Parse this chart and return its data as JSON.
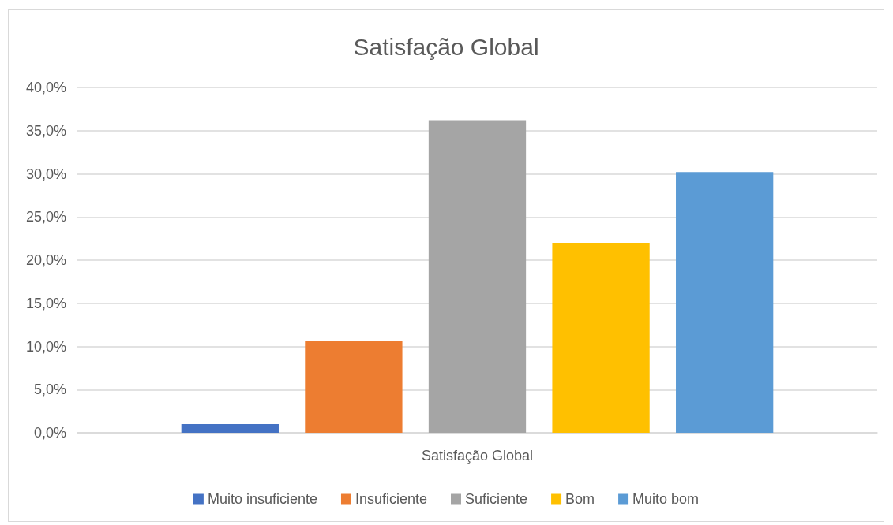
{
  "chart_data": {
    "type": "bar",
    "title": "Satisfação Global",
    "categories": [
      "Satisfação Global"
    ],
    "series": [
      {
        "name": "Muito insuficiente",
        "color": "#4472c4",
        "values": [
          1.0
        ]
      },
      {
        "name": "Insuficiente",
        "color": "#ed7d31",
        "values": [
          10.6
        ]
      },
      {
        "name": "Suficiente",
        "color": "#a5a5a5",
        "values": [
          36.2
        ]
      },
      {
        "name": "Bom",
        "color": "#ffc000",
        "values": [
          22.0
        ]
      },
      {
        "name": "Muito bom",
        "color": "#5b9bd5",
        "values": [
          30.2
        ]
      }
    ],
    "ylim": [
      0,
      40
    ],
    "yticks": [
      {
        "value": 0,
        "label": "0,0%"
      },
      {
        "value": 5,
        "label": "5,0%"
      },
      {
        "value": 10,
        "label": "10,0%"
      },
      {
        "value": 15,
        "label": "15,0%"
      },
      {
        "value": 20,
        "label": "20,0%"
      },
      {
        "value": 25,
        "label": "25,0%"
      },
      {
        "value": 30,
        "label": "30,0%"
      },
      {
        "value": 35,
        "label": "35,0%"
      },
      {
        "value": 40,
        "label": "40,0%"
      }
    ],
    "grid": "y",
    "legend": "bottom"
  }
}
